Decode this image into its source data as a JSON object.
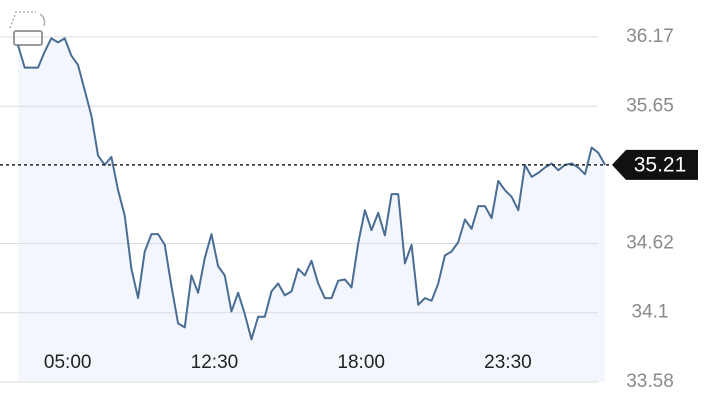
{
  "chart_data": {
    "type": "line",
    "categories": [
      null,
      null,
      null,
      null,
      null,
      null,
      null,
      "05:00",
      null,
      null,
      null,
      null,
      null,
      null,
      null,
      null,
      null,
      null,
      null,
      null,
      null,
      null,
      null,
      null,
      null,
      null,
      null,
      null,
      null,
      "12:30",
      null,
      null,
      null,
      null,
      null,
      null,
      null,
      null,
      null,
      null,
      null,
      null,
      null,
      null,
      null,
      null,
      null,
      null,
      null,
      null,
      null,
      "18:00",
      null,
      null,
      null,
      null,
      null,
      null,
      null,
      null,
      null,
      null,
      null,
      null,
      null,
      null,
      null,
      null,
      null,
      null,
      null,
      null,
      null,
      "23:30",
      null,
      null,
      null,
      null,
      null,
      null,
      null,
      null,
      null,
      null,
      null,
      null,
      null,
      null,
      null
    ],
    "series": [
      {
        "color": "#4a6d94",
        "values": [
          36.11,
          35.94,
          35.94,
          35.94,
          36.06,
          36.16,
          36.13,
          36.16,
          36.03,
          35.96,
          35.77,
          35.58,
          35.28,
          35.21,
          35.27,
          35.02,
          34.83,
          34.43,
          34.21,
          34.56,
          34.69,
          34.69,
          34.61,
          34.3,
          34.02,
          33.99,
          34.38,
          34.25,
          34.51,
          34.69,
          34.45,
          34.38,
          34.11,
          34.25,
          34.09,
          33.9,
          34.07,
          34.07,
          34.26,
          34.32,
          34.23,
          34.26,
          34.43,
          34.38,
          34.49,
          34.32,
          34.21,
          34.21,
          34.34,
          34.35,
          34.29,
          34.62,
          34.87,
          34.72,
          34.85,
          34.68,
          34.99,
          34.99,
          34.47,
          34.61,
          34.16,
          34.21,
          34.19,
          34.32,
          34.53,
          34.56,
          34.63,
          34.8,
          34.73,
          34.9,
          34.9,
          34.81,
          35.09,
          35.02,
          34.97,
          34.87,
          35.21,
          35.12,
          35.15,
          35.19,
          35.22,
          35.17,
          35.21,
          35.22,
          35.19,
          35.14,
          35.34,
          35.3,
          35.21
        ]
      }
    ],
    "ylim": [
      33.58,
      36.17
    ],
    "yticks": [
      36.17,
      35.65,
      34.62,
      34.1,
      33.58
    ],
    "current_value": 35.21,
    "area_color": "#f3f7fd",
    "grid": true
  }
}
